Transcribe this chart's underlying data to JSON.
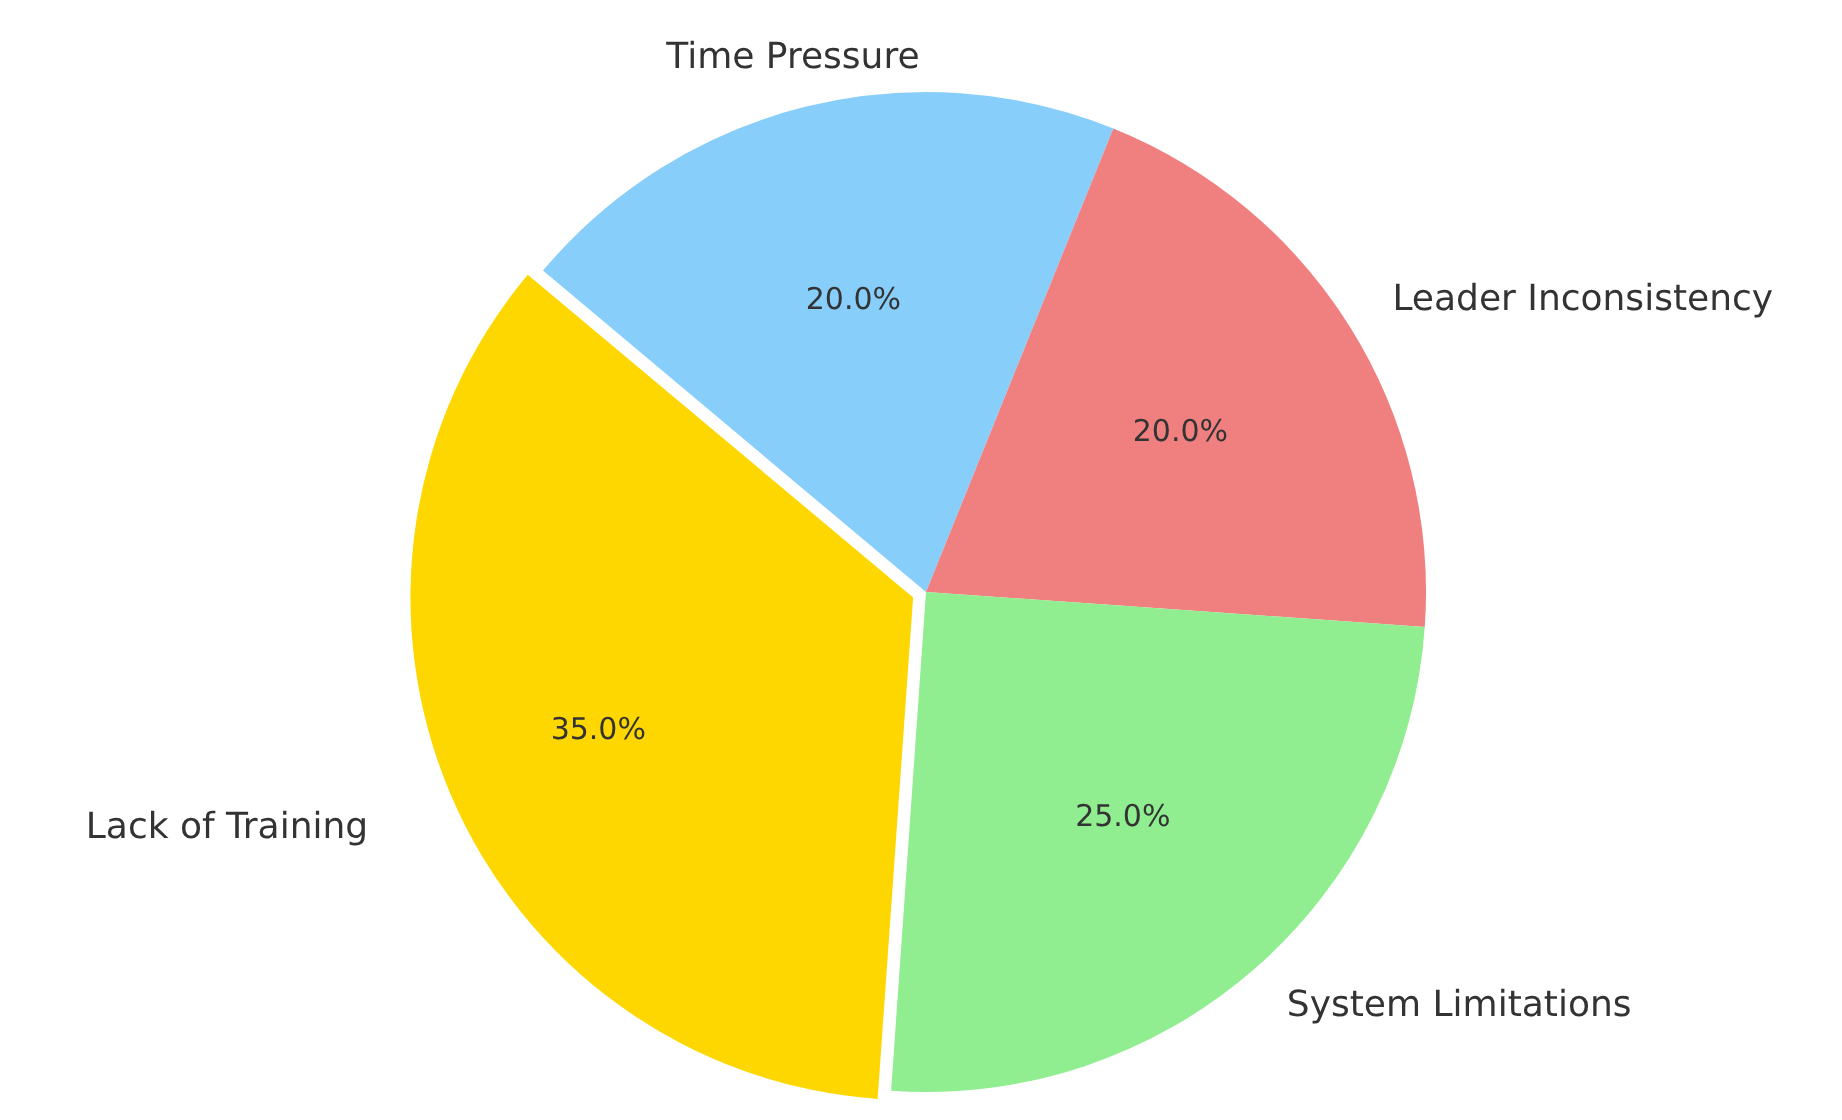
{
  "chart_data": {
    "type": "pie",
    "categories": [
      "Time Pressure",
      "Leader Inconsistency",
      "System Limitations",
      "Lack of Training"
    ],
    "values": [
      20,
      20,
      25,
      35
    ],
    "colors": [
      "#87cefa",
      "#f08080",
      "#90ee90",
      "#ffd700"
    ],
    "value_labels": [
      "20.0%",
      "20.0%",
      "25.0%",
      "35.0%"
    ],
    "legend": false
  }
}
